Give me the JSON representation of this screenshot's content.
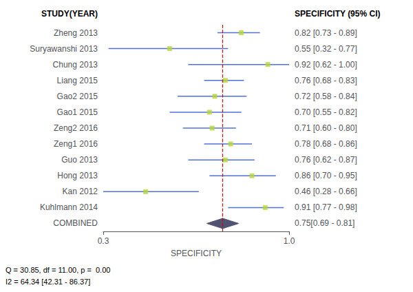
{
  "chart_data": {
    "type": "forest",
    "xlabel": "SPECIFICITY",
    "xlim": [
      0.3,
      1
    ],
    "xticks": [
      0.3,
      {
        "value": 1,
        "label": "1.0"
      }
    ],
    "grid": false,
    "column_headers": [
      "STUDY(YEAR)",
      "SPECIFICITY (95% CI)"
    ],
    "categories": [
      "Zheng 2013",
      "Suryawanshi 2013",
      "Chung 2013",
      "Liang 2015",
      "Gao2 2015",
      "Gao1 2015",
      "Zeng2 2016",
      "Zeng1 2016",
      "Guo 2013",
      "Hong 2013",
      "Kan 2012",
      "Kuhlmann 2014"
    ],
    "values": [
      0.82,
      0.55,
      0.92,
      0.76,
      0.72,
      0.7,
      0.71,
      0.78,
      0.76,
      0.86,
      0.46,
      0.91
    ],
    "ci_low": [
      0.73,
      0.32,
      0.62,
      0.68,
      0.58,
      0.55,
      0.6,
      0.68,
      0.62,
      0.7,
      0.28,
      0.77
    ],
    "ci_high": [
      0.89,
      0.77,
      1.0,
      0.83,
      0.84,
      0.82,
      0.8,
      0.86,
      0.87,
      0.95,
      0.66,
      0.98
    ],
    "value_labels": [
      "0.82 [0.73 - 0.89]",
      "0.55 [0.32 - 0.77]",
      "0.92 [0.62 - 1.00]",
      "0.76 [0.68 - 0.83]",
      "0.72 [0.58 - 0.84]",
      "0.70 [0.55 - 0.82]",
      "0.71 [0.60 - 0.80]",
      "0.78 [0.68 - 0.86]",
      "0.76 [0.62 - 0.87]",
      "0.86 [0.70 - 0.95]",
      "0.46 [0.28 - 0.66]",
      "0.91 [0.77 - 0.98]"
    ],
    "marker": "square",
    "combined": {
      "name": "COMBINED",
      "value": 0.75,
      "ci_low": 0.69,
      "ci_high": 0.81,
      "value_label": "0.75[0.69 - 0.81]",
      "marker": "diamond"
    },
    "reference_line": {
      "value": 0.75,
      "color": "#cc0000",
      "line_style": "dashed"
    },
    "annotations": [
      "Q = 30.85, df = 11.00, p =  0.00",
      "I2 = 64.34 [42.31 - 86.37]"
    ]
  }
}
